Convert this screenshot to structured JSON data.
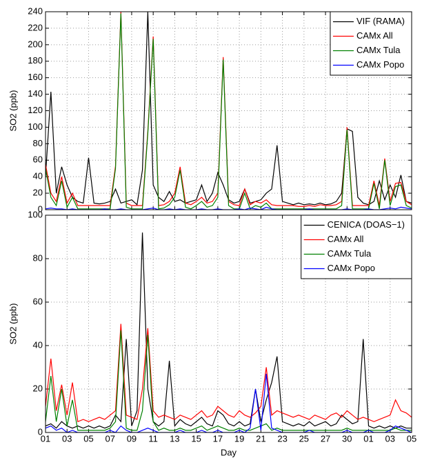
{
  "chart_data": [
    {
      "type": "line",
      "ylabel": "SO2 (ppb)",
      "grid": true,
      "legend": "upper right",
      "show_xtick_labels": false,
      "xlim": [
        0,
        34
      ],
      "xticks": [
        0,
        2,
        4,
        6,
        8,
        10,
        12,
        14,
        16,
        18,
        20,
        22,
        24,
        26,
        28,
        30,
        32,
        34
      ],
      "ylim": [
        0,
        240
      ],
      "yticks": [
        0,
        20,
        40,
        60,
        80,
        100,
        120,
        140,
        160,
        180,
        200,
        220,
        240
      ],
      "x": [
        0,
        0.5,
        1,
        1.5,
        2,
        2.5,
        3,
        3.5,
        4,
        4.5,
        5,
        5.5,
        6,
        6.5,
        7,
        7.5,
        8,
        8.5,
        9,
        9.5,
        10,
        10.5,
        11,
        11.5,
        12,
        12.5,
        13,
        13.5,
        14,
        14.5,
        15,
        15.5,
        16,
        16.5,
        17,
        17.5,
        18,
        18.5,
        19,
        19.5,
        20,
        20.5,
        21,
        21.5,
        22,
        22.5,
        23,
        23.5,
        24,
        24.5,
        25,
        25.5,
        26,
        26.5,
        27,
        27.5,
        28,
        28.5,
        29,
        29.5,
        30,
        30.5,
        31,
        31.5,
        32,
        32.5,
        33,
        33.5,
        34
      ],
      "series": [
        {
          "name": "VIF (RAMA)",
          "color": "#000000",
          "values": [
            40,
            143,
            20,
            52,
            30,
            15,
            10,
            8,
            63,
            8,
            7,
            8,
            10,
            25,
            8,
            10,
            12,
            6,
            48,
            240,
            30,
            15,
            10,
            22,
            10,
            12,
            8,
            10,
            12,
            30,
            10,
            20,
            45,
            30,
            12,
            8,
            10,
            25,
            8,
            10,
            12,
            20,
            25,
            78,
            10,
            8,
            6,
            8,
            6,
            7,
            6,
            8,
            6,
            7,
            10,
            20,
            98,
            95,
            15,
            8,
            6,
            10,
            35,
            12,
            30,
            15,
            42,
            10,
            8
          ]
        },
        {
          "name": "CAMx All",
          "color": "#ff0000",
          "values": [
            55,
            20,
            10,
            40,
            8,
            20,
            5,
            5,
            5,
            5,
            5,
            5,
            5,
            53,
            240,
            8,
            5,
            5,
            5,
            95,
            210,
            5,
            6,
            10,
            20,
            52,
            8,
            6,
            10,
            15,
            8,
            10,
            20,
            185,
            10,
            6,
            5,
            25,
            6,
            10,
            8,
            12,
            6,
            5,
            5,
            5,
            5,
            4,
            4,
            5,
            4,
            6,
            5,
            5,
            6,
            10,
            100,
            5,
            5,
            5,
            5,
            35,
            5,
            62,
            10,
            32,
            33,
            10,
            6
          ]
        },
        {
          "name": "CAMx Tula",
          "color": "#008000",
          "values": [
            50,
            15,
            5,
            35,
            3,
            15,
            1,
            1,
            1,
            1,
            1,
            1,
            1,
            50,
            238,
            3,
            1,
            1,
            1,
            92,
            207,
            1,
            2,
            6,
            15,
            48,
            3,
            1,
            5,
            10,
            3,
            5,
            15,
            182,
            5,
            1,
            1,
            20,
            1,
            5,
            3,
            8,
            1,
            1,
            1,
            1,
            1,
            1,
            1,
            1,
            1,
            1,
            1,
            1,
            1,
            5,
            97,
            1,
            1,
            1,
            1,
            32,
            1,
            60,
            5,
            28,
            30,
            5,
            2
          ]
        },
        {
          "name": "CAMx Popo",
          "color": "#0000ff",
          "values": [
            1,
            2,
            1,
            1,
            0,
            1,
            0,
            0,
            0,
            0,
            0,
            1,
            0,
            0,
            1,
            0,
            0,
            0,
            0,
            1,
            2,
            0,
            0,
            1,
            0,
            1,
            0,
            0,
            0,
            1,
            0,
            0,
            1,
            0,
            0,
            0,
            1,
            0,
            2,
            1,
            0,
            3,
            1,
            0,
            0,
            0,
            0,
            0,
            0,
            1,
            0,
            0,
            0,
            0,
            0,
            0,
            1,
            0,
            0,
            0,
            1,
            0,
            0,
            1,
            2,
            1,
            3,
            2,
            1
          ]
        }
      ]
    },
    {
      "type": "line",
      "ylabel": "SO2 (ppb)",
      "xlabel": "Day",
      "grid": true,
      "legend": "upper right",
      "show_xtick_labels": true,
      "xlim": [
        0,
        34
      ],
      "xticks": [
        {
          "value": 0,
          "label": "01"
        },
        {
          "value": 2,
          "label": "03"
        },
        {
          "value": 4,
          "label": "05"
        },
        {
          "value": 6,
          "label": "07"
        },
        {
          "value": 8,
          "label": "09"
        },
        {
          "value": 10,
          "label": "11"
        },
        {
          "value": 12,
          "label": "13"
        },
        {
          "value": 14,
          "label": "15"
        },
        {
          "value": 16,
          "label": "17"
        },
        {
          "value": 18,
          "label": "19"
        },
        {
          "value": 20,
          "label": "21"
        },
        {
          "value": 22,
          "label": "23"
        },
        {
          "value": 24,
          "label": "25"
        },
        {
          "value": 26,
          "label": "27"
        },
        {
          "value": 28,
          "label": "30"
        },
        {
          "value": 30,
          "label": "01"
        },
        {
          "value": 32,
          "label": "03"
        },
        {
          "value": 34,
          "label": "05"
        }
      ],
      "ylim": [
        0,
        100
      ],
      "yticks": [
        0,
        20,
        40,
        60,
        80,
        100
      ],
      "x": [
        0,
        0.5,
        1,
        1.5,
        2,
        2.5,
        3,
        3.5,
        4,
        4.5,
        5,
        5.5,
        6,
        6.5,
        7,
        7.5,
        8,
        8.5,
        9,
        9.5,
        10,
        10.5,
        11,
        11.5,
        12,
        12.5,
        13,
        13.5,
        14,
        14.5,
        15,
        15.5,
        16,
        16.5,
        17,
        17.5,
        18,
        18.5,
        19,
        19.5,
        20,
        20.5,
        21,
        21.5,
        22,
        22.5,
        23,
        23.5,
        24,
        24.5,
        25,
        25.5,
        26,
        26.5,
        27,
        27.5,
        28,
        28.5,
        29,
        29.5,
        30,
        30.5,
        31,
        31.5,
        32,
        32.5,
        33,
        33.5,
        34
      ],
      "series": [
        {
          "name": "CENICA (DOAS−1)",
          "color": "#000000",
          "values": [
            3,
            4,
            2,
            5,
            3,
            2,
            3,
            2,
            3,
            2,
            3,
            2,
            3,
            8,
            5,
            43,
            3,
            10,
            92,
            20,
            5,
            3,
            5,
            33,
            3,
            6,
            4,
            3,
            5,
            7,
            4,
            3,
            10,
            8,
            4,
            3,
            5,
            3,
            4,
            20,
            5,
            15,
            23,
            35,
            5,
            4,
            3,
            4,
            3,
            5,
            3,
            4,
            5,
            3,
            4,
            8,
            6,
            4,
            5,
            43,
            3,
            2,
            3,
            2,
            3,
            2,
            3,
            2,
            2
          ]
        },
        {
          "name": "CAMx All",
          "color": "#ff0000",
          "values": [
            12,
            34,
            10,
            22,
            8,
            23,
            5,
            6,
            5,
            6,
            7,
            6,
            8,
            10,
            50,
            8,
            7,
            6,
            20,
            48,
            10,
            7,
            8,
            7,
            6,
            8,
            7,
            6,
            8,
            10,
            7,
            8,
            12,
            10,
            8,
            7,
            10,
            8,
            7,
            9,
            12,
            30,
            8,
            10,
            9,
            8,
            7,
            8,
            7,
            6,
            8,
            7,
            6,
            8,
            9,
            7,
            10,
            8,
            6,
            7,
            6,
            5,
            6,
            7,
            8,
            15,
            10,
            9,
            7
          ]
        },
        {
          "name": "CAMx Tula",
          "color": "#008000",
          "values": [
            5,
            26,
            5,
            20,
            3,
            15,
            1,
            1,
            1,
            1,
            1,
            1,
            2,
            5,
            47,
            2,
            1,
            1,
            10,
            45,
            5,
            1,
            2,
            1,
            1,
            2,
            1,
            1,
            2,
            3,
            1,
            2,
            3,
            2,
            1,
            1,
            2,
            1,
            1,
            2,
            3,
            4,
            1,
            2,
            1,
            1,
            1,
            1,
            1,
            1,
            1,
            1,
            1,
            1,
            1,
            1,
            2,
            1,
            1,
            1,
            1,
            1,
            1,
            1,
            1,
            2,
            1,
            1,
            1
          ]
        },
        {
          "name": "CAMx Popo",
          "color": "#0000ff",
          "values": [
            2,
            3,
            1,
            2,
            0,
            1,
            0,
            0,
            0,
            0,
            0,
            0,
            1,
            0,
            3,
            1,
            0,
            0,
            1,
            2,
            1,
            0,
            0,
            0,
            0,
            1,
            0,
            0,
            0,
            1,
            0,
            0,
            1,
            0,
            0,
            0,
            1,
            0,
            2,
            20,
            1,
            27,
            2,
            1,
            0,
            0,
            0,
            0,
            0,
            1,
            0,
            0,
            0,
            0,
            0,
            0,
            1,
            0,
            0,
            0,
            1,
            0,
            0,
            0,
            1,
            3,
            2,
            1,
            0
          ]
        }
      ]
    }
  ]
}
